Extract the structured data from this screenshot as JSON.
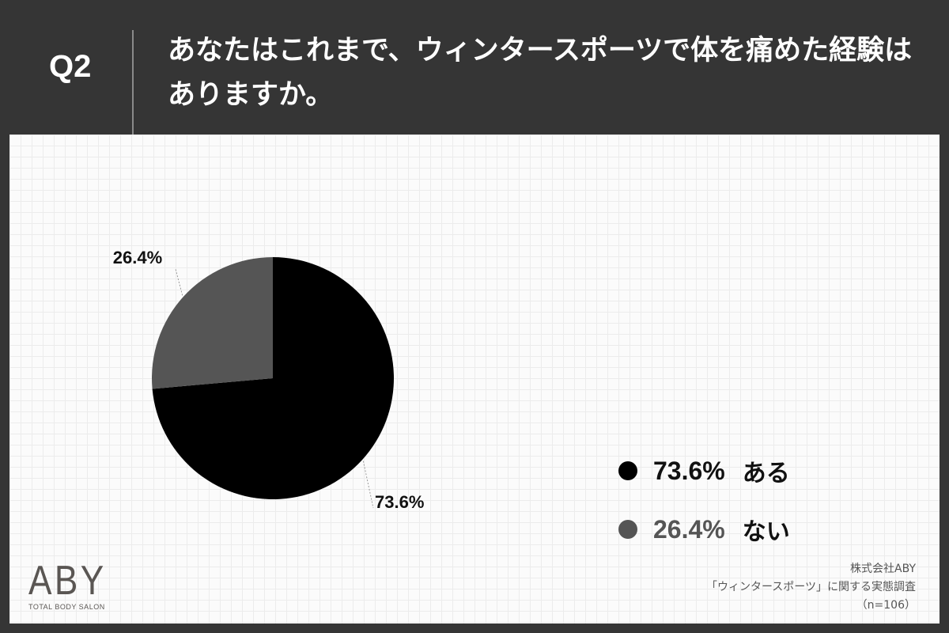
{
  "header": {
    "question_number": "Q2",
    "question_text": "あなたはこれまで、ウィンタースポーツで体を痛めた経験はありますか。"
  },
  "chart_data": {
    "type": "pie",
    "slices": [
      {
        "label": "ある",
        "value": 73.6,
        "value_label": "73.6%",
        "color": "#000000"
      },
      {
        "label": "ない",
        "value": 26.4,
        "value_label": "26.4%",
        "color": "#555555"
      }
    ],
    "legend_position": "right",
    "start_angle": "12 o'clock",
    "direction": "clockwise"
  },
  "legend": {
    "items": [
      {
        "value": "73.6%",
        "label": "ある",
        "color": "#000000"
      },
      {
        "value": "26.4%",
        "label": "ない",
        "color": "#555555"
      }
    ]
  },
  "logo": {
    "mark": "ABY",
    "subtitle": "TOTAL BODY SALON"
  },
  "footer": {
    "company": "株式会社ABY",
    "survey": "「ウィンタースポーツ」に関する実態調査",
    "sample": "（n=106）"
  },
  "colors": {
    "background": "#353535",
    "panel": "#fbfbfb",
    "grid": "#ececec"
  }
}
